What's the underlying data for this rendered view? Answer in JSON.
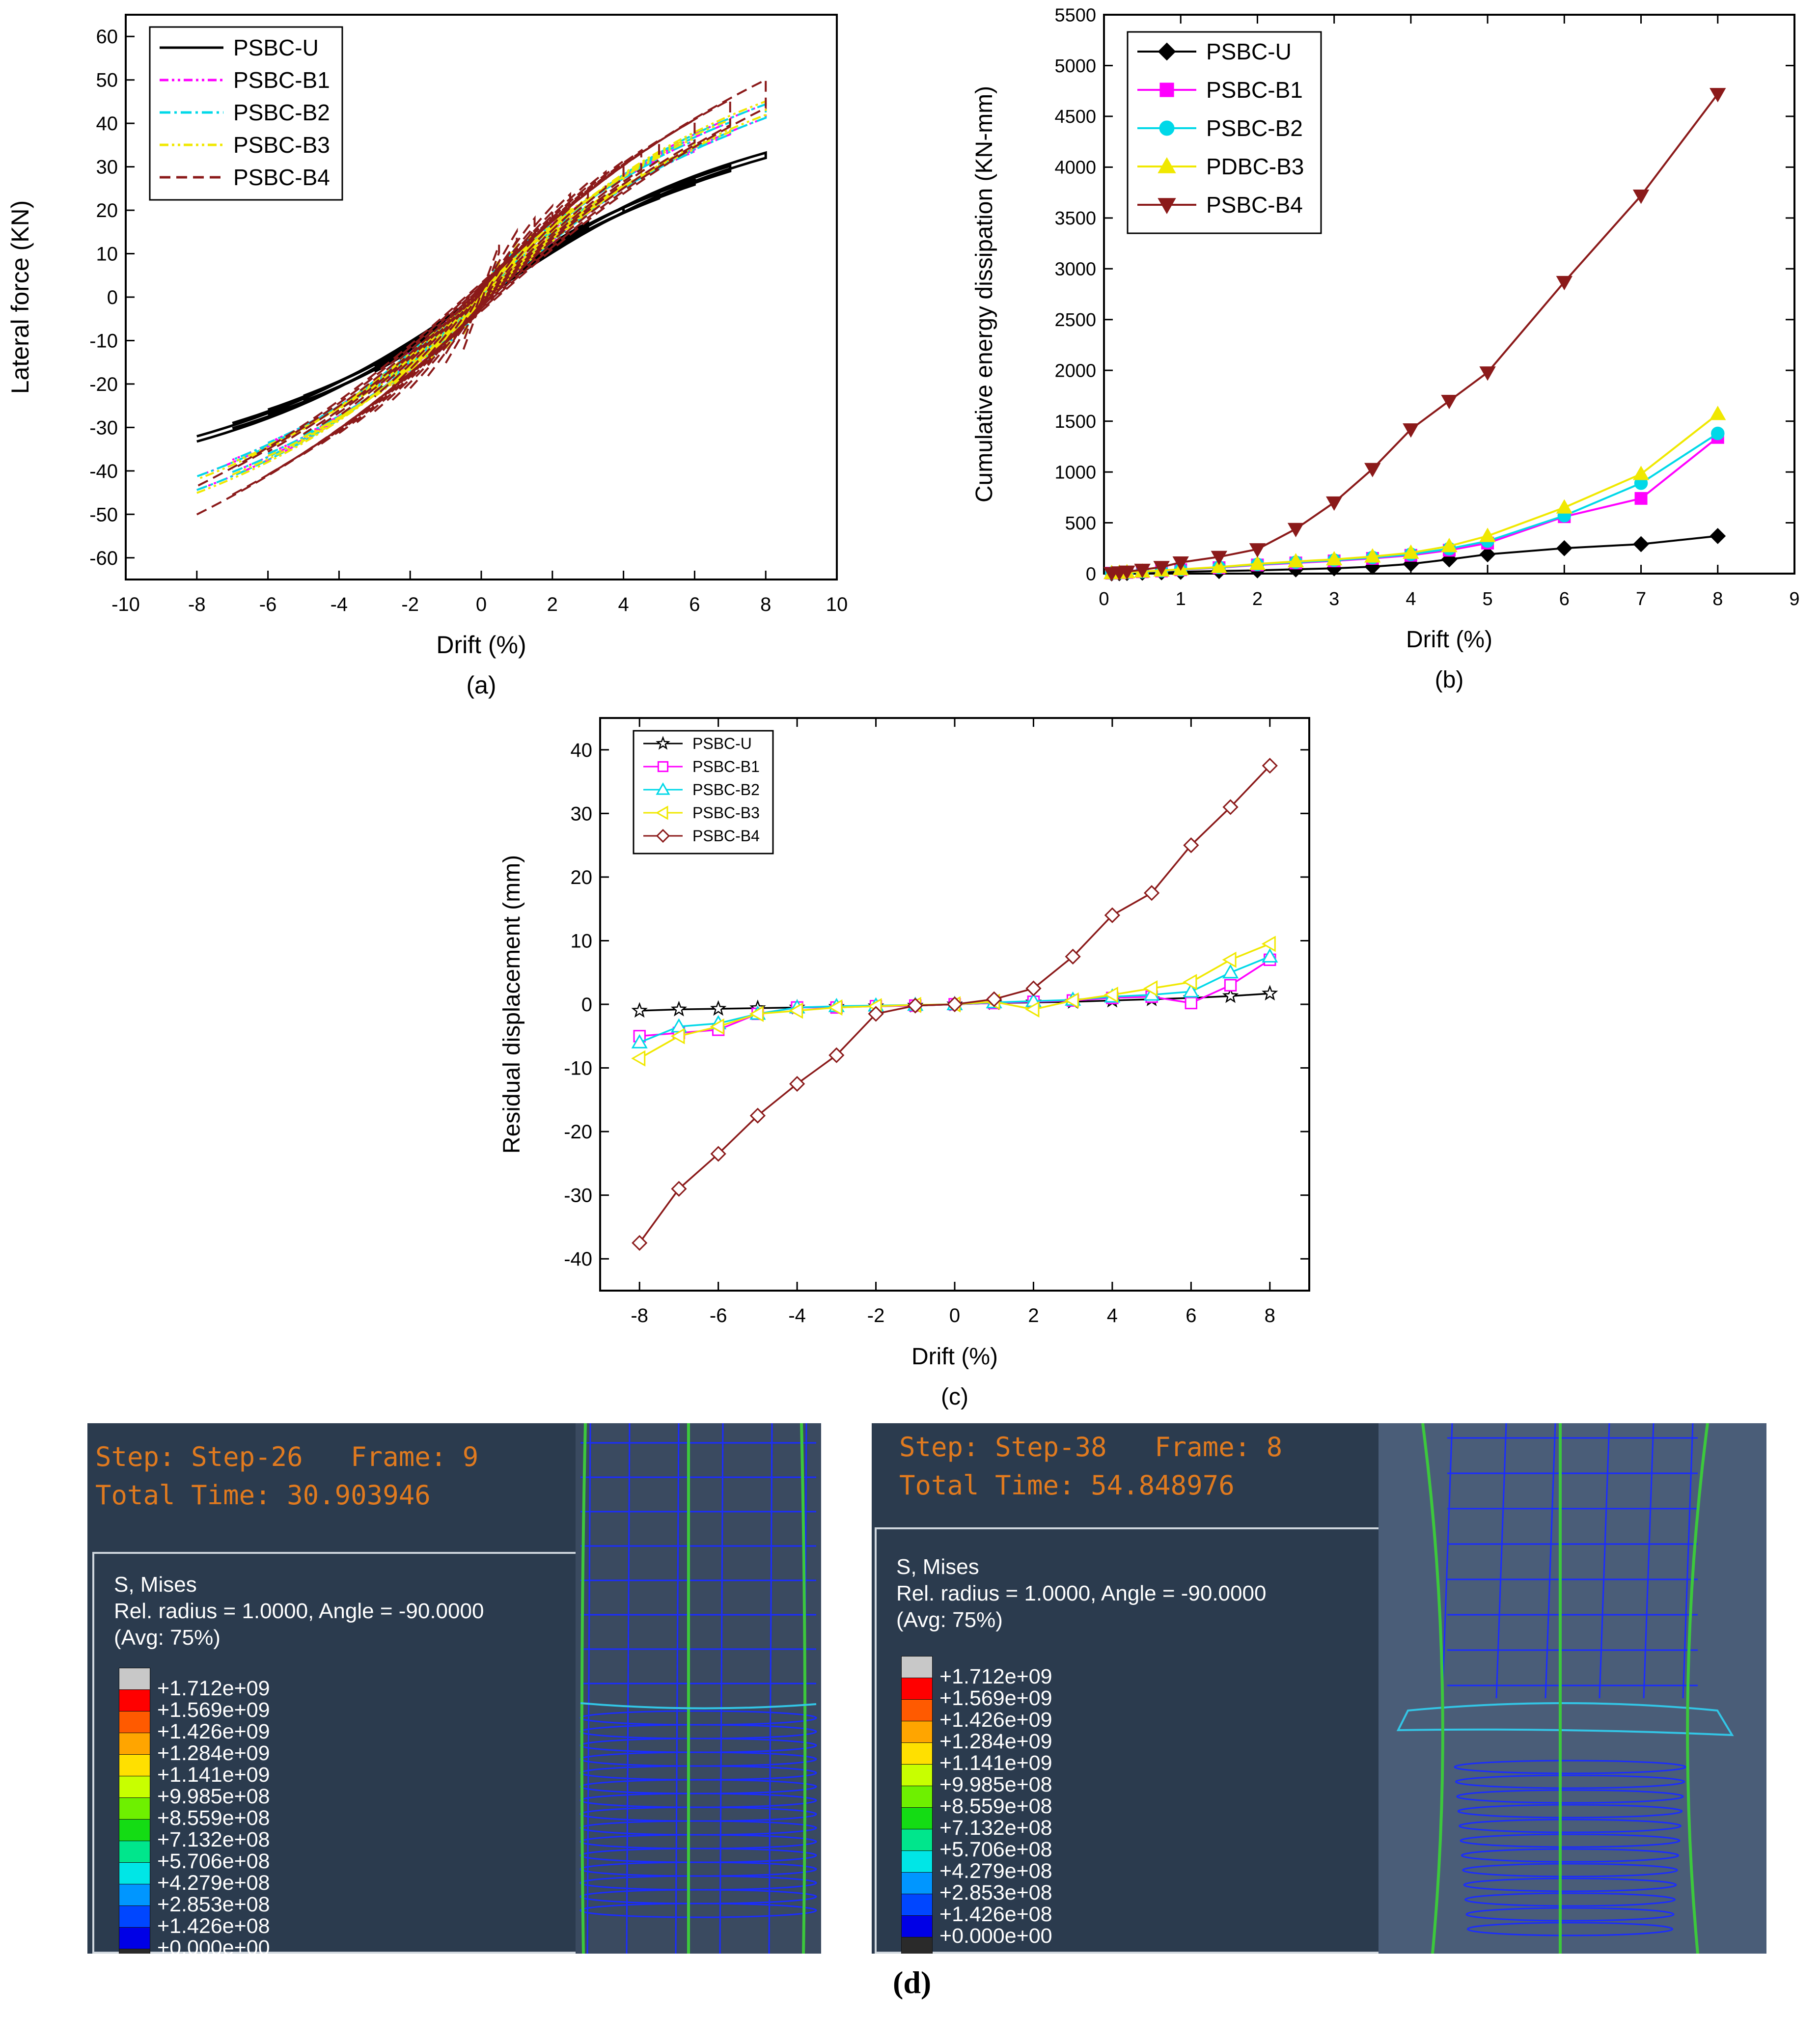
{
  "chart_data": [
    {
      "id": "a",
      "type": "line",
      "caption": "(a)",
      "xlabel": "Drift (%)",
      "ylabel": "Lateral force (KN)",
      "xlim": [
        -10,
        10
      ],
      "ylim": [
        -65,
        65
      ],
      "xticks": [
        -10,
        -8,
        -6,
        -4,
        -2,
        0,
        2,
        4,
        6,
        8,
        10
      ],
      "yticks": [
        -60,
        -50,
        -40,
        -30,
        -20,
        -10,
        0,
        10,
        20,
        30,
        40,
        50,
        60
      ],
      "legend_position": "top-left",
      "series": [
        {
          "name": "PSBC-U",
          "color": "#000000",
          "dash": "solid",
          "peak_force": 36,
          "amplitude": [
            1,
            2,
            3,
            4,
            5,
            6,
            7,
            8
          ]
        },
        {
          "name": "PSBC-B1",
          "color": "#ff00ff",
          "dash": "dashdotdot",
          "peak_force": 47,
          "amplitude": [
            0.5,
            1,
            1.5,
            2,
            2.5,
            3,
            3.5,
            4,
            4.5,
            5,
            6,
            7,
            8
          ]
        },
        {
          "name": "PSBC-B2",
          "color": "#00d8e8",
          "dash": "dashdot",
          "peak_force": 47,
          "amplitude": [
            0.5,
            1,
            1.5,
            2,
            2.5,
            3,
            3.5,
            4,
            4.5,
            5,
            6,
            7,
            8
          ]
        },
        {
          "name": "PSBC-B3",
          "color": "#f0e800",
          "dash": "dashdotdot",
          "peak_force": 48,
          "amplitude": [
            0.5,
            1,
            1.5,
            2,
            2.5,
            3,
            3.5,
            4,
            4.5,
            5,
            6,
            7,
            8
          ]
        },
        {
          "name": "PSBC-B4",
          "color": "#8b1a1a",
          "dash": "dash",
          "peak_force": 51,
          "amplitude": [
            0.5,
            1,
            1.5,
            2,
            2.5,
            3,
            3.5,
            4,
            4.5,
            5,
            6,
            7,
            8
          ]
        }
      ]
    },
    {
      "id": "b",
      "type": "line",
      "caption": "(b)",
      "xlabel": "Drift (%)",
      "ylabel": "Cumulative energy dissipation (KN-mm)",
      "xlim": [
        0,
        9
      ],
      "ylim": [
        0,
        5500
      ],
      "xticks": [
        0,
        1,
        2,
        3,
        4,
        5,
        6,
        7,
        8,
        9
      ],
      "yticks": [
        0,
        500,
        1000,
        1500,
        2000,
        2500,
        3000,
        3500,
        4000,
        4500,
        5000,
        5500
      ],
      "legend_position": "top-left",
      "series": [
        {
          "name": "PSBC-U",
          "color": "#000000",
          "marker": "diamond",
          "x": [
            0.1,
            0.2,
            0.3,
            0.5,
            0.75,
            1,
            1.5,
            2,
            2.5,
            3,
            3.5,
            4,
            4.5,
            5,
            6,
            7,
            8
          ],
          "y": [
            2,
            4,
            6,
            9,
            13,
            18,
            25,
            32,
            42,
            52,
            68,
            95,
            140,
            190,
            250,
            290,
            370
          ]
        },
        {
          "name": "PSBC-B1",
          "color": "#ff00ff",
          "marker": "square",
          "x": [
            0.1,
            0.2,
            0.3,
            0.5,
            0.75,
            1,
            1.5,
            2,
            2.5,
            3,
            3.5,
            4,
            4.5,
            5,
            6,
            7,
            8
          ],
          "y": [
            4,
            8,
            12,
            18,
            26,
            38,
            58,
            85,
            105,
            125,
            150,
            180,
            230,
            300,
            560,
            740,
            1340
          ]
        },
        {
          "name": "PSBC-B2",
          "color": "#00d8e8",
          "marker": "circle",
          "x": [
            0.1,
            0.2,
            0.3,
            0.5,
            0.75,
            1,
            1.5,
            2,
            2.5,
            3,
            3.5,
            4,
            4.5,
            5,
            6,
            7,
            8
          ],
          "y": [
            4,
            8,
            12,
            19,
            28,
            40,
            62,
            90,
            112,
            132,
            158,
            190,
            245,
            320,
            570,
            890,
            1380
          ]
        },
        {
          "name": "PDBC-B3",
          "color": "#f0e800",
          "marker": "triangle-up",
          "x": [
            0.1,
            0.2,
            0.3,
            0.5,
            0.75,
            1,
            1.5,
            2,
            2.5,
            3,
            3.5,
            4,
            4.5,
            5,
            6,
            7,
            8
          ],
          "y": [
            4,
            8,
            13,
            20,
            30,
            42,
            65,
            95,
            120,
            140,
            168,
            205,
            270,
            370,
            650,
            980,
            1570
          ]
        },
        {
          "name": "PSBC-B4",
          "color": "#8b1a1a",
          "marker": "triangle-down",
          "x": [
            0.1,
            0.2,
            0.3,
            0.5,
            0.75,
            1,
            1.5,
            2,
            2.5,
            3,
            3.5,
            4,
            4.5,
            5,
            6,
            7,
            8
          ],
          "y": [
            5,
            12,
            20,
            38,
            65,
            110,
            165,
            240,
            440,
            700,
            1030,
            1420,
            1700,
            1980,
            2870,
            3720,
            4720
          ]
        }
      ]
    },
    {
      "id": "c",
      "type": "line",
      "caption": "(c)",
      "xlabel": "Drift (%)",
      "ylabel": "Residual displacement (mm)",
      "xlim": [
        -9,
        9
      ],
      "ylim": [
        -45,
        45
      ],
      "xticks": [
        -8,
        -6,
        -4,
        -2,
        0,
        2,
        4,
        6,
        8
      ],
      "yticks": [
        -40,
        -30,
        -20,
        -10,
        0,
        10,
        20,
        30,
        40
      ],
      "legend_position": "top-left",
      "series": [
        {
          "name": "PSBC-U",
          "color": "#000000",
          "marker": "star",
          "x": [
            -8,
            -7,
            -6,
            -5,
            -4,
            -3,
            -2,
            -1,
            0,
            1,
            2,
            3,
            4,
            5,
            6,
            7,
            8
          ],
          "y": [
            -1,
            -0.8,
            -0.7,
            -0.6,
            -0.5,
            -0.4,
            -0.3,
            -0.2,
            0,
            0.2,
            0.3,
            0.4,
            0.6,
            0.8,
            1,
            1.3,
            1.7
          ]
        },
        {
          "name": "PSBC-B1",
          "color": "#ff00ff",
          "marker": "square-open",
          "x": [
            -8,
            -7,
            -6,
            -5,
            -4,
            -3,
            -2,
            -1,
            0,
            1,
            2,
            3,
            4,
            5,
            6,
            7,
            8
          ],
          "y": [
            -5,
            -4.5,
            -4,
            -1.5,
            -0.5,
            -0.5,
            -0.3,
            -0.2,
            0,
            0.2,
            0.4,
            0.6,
            1,
            1.2,
            0.2,
            3,
            7
          ]
        },
        {
          "name": "PSBC-B2",
          "color": "#00d8e8",
          "marker": "triangle-open",
          "x": [
            -8,
            -7,
            -6,
            -5,
            -4,
            -3,
            -2,
            -1,
            0,
            1,
            2,
            3,
            4,
            5,
            6,
            7,
            8
          ],
          "y": [
            -6,
            -3.5,
            -3,
            -1.5,
            -0.5,
            -0.3,
            -0.2,
            -0.1,
            0,
            0.3,
            0.5,
            0.7,
            1.2,
            1.5,
            2,
            5,
            7.5
          ]
        },
        {
          "name": "PSBC-B3",
          "color": "#f0e800",
          "marker": "triangle-left-open",
          "x": [
            -8,
            -7,
            -6,
            -5,
            -4,
            -3,
            -2,
            -1,
            0,
            1,
            2,
            3,
            4,
            5,
            6,
            7,
            8
          ],
          "y": [
            -8.5,
            -5,
            -3.5,
            -1.5,
            -1,
            -0.5,
            -0.3,
            -0.1,
            0,
            0.4,
            -0.8,
            0.6,
            1.5,
            2.5,
            3.5,
            7,
            9.5
          ]
        },
        {
          "name": "PSBC-B4",
          "color": "#8b1a1a",
          "marker": "diamond-open",
          "x": [
            -8,
            -7,
            -6,
            -5,
            -4,
            -3,
            -2,
            -1,
            0,
            1,
            2,
            3,
            4,
            5,
            6,
            7,
            8
          ],
          "y": [
            -37.5,
            -29,
            -23.5,
            -17.5,
            -12.5,
            -8,
            -1.5,
            -0.2,
            0,
            0.8,
            2.5,
            7.5,
            14,
            17.5,
            25,
            31,
            37.5
          ]
        }
      ]
    }
  ],
  "fea": {
    "caption": "(d)",
    "panels": [
      {
        "step_line": "Step: Step-26   Frame: 9",
        "time_line": "Total Time: 30.903946",
        "legend_title": "S, Mises",
        "legend_sub": "Rel. radius = 1.0000, Angle = -90.0000",
        "legend_avg": "(Avg: 75%)"
      },
      {
        "step_line": "Step: Step-38   Frame: 8",
        "time_line": "Total Time: 54.848976",
        "legend_title": "S, Mises",
        "legend_sub": "Rel. radius = 1.0000, Angle = -90.0000",
        "legend_avg": "(Avg: 75%)"
      }
    ],
    "contour_levels": [
      "+1.712e+09",
      "+1.569e+09",
      "+1.426e+09",
      "+1.284e+09",
      "+1.141e+09",
      "+9.985e+08",
      "+8.559e+08",
      "+7.132e+08",
      "+5.706e+08",
      "+4.279e+08",
      "+2.853e+08",
      "+1.426e+08",
      "+0.000e+00"
    ],
    "contour_colors": [
      "#c8c8c8",
      "#ff0000",
      "#ff5a00",
      "#ffa500",
      "#ffe000",
      "#c8ff00",
      "#6ef000",
      "#14dc14",
      "#00e68c",
      "#00e6e6",
      "#0096ff",
      "#0046ff",
      "#0000e6",
      "#2a2a2a"
    ]
  }
}
